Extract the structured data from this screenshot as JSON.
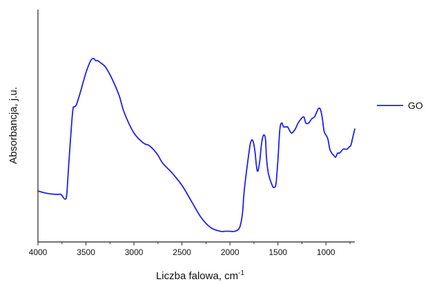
{
  "chart_data": {
    "type": "line",
    "title": "",
    "xlabel": "Liczba falowa, cm",
    "xlabel_superscript": "-1",
    "ylabel": "Absorbancja, j.u.",
    "xlim": [
      4000,
      700
    ],
    "x_reversed": true,
    "ylim": [
      0,
      1
    ],
    "y_ticks_shown": false,
    "x_ticks": [
      4000,
      3500,
      3000,
      2500,
      2000,
      1500,
      1000
    ],
    "grid": false,
    "legend_position": "right",
    "series": [
      {
        "name": "GO",
        "color": "#1f1fef",
        "x": [
          4000,
          3900,
          3800,
          3760,
          3720,
          3700,
          3680,
          3640,
          3620,
          3600,
          3560,
          3500,
          3450,
          3420,
          3400,
          3380,
          3350,
          3300,
          3250,
          3200,
          3150,
          3100,
          3000,
          2900,
          2850,
          2800,
          2750,
          2700,
          2600,
          2500,
          2400,
          2300,
          2200,
          2100,
          2050,
          2000,
          1950,
          1900,
          1870,
          1850,
          1800,
          1780,
          1760,
          1740,
          1725,
          1710,
          1690,
          1670,
          1650,
          1630,
          1620,
          1600,
          1560,
          1540,
          1520,
          1500,
          1480,
          1460,
          1440,
          1400,
          1360,
          1320,
          1290,
          1260,
          1230,
          1210,
          1180,
          1150,
          1120,
          1100,
          1080,
          1060,
          1040,
          1020,
          1000,
          980,
          960,
          940,
          920,
          900,
          880,
          860,
          840,
          820,
          800,
          780,
          760,
          740,
          720,
          700
        ],
        "y": [
          0.212,
          0.2,
          0.195,
          0.195,
          0.172,
          0.195,
          0.34,
          0.6,
          0.63,
          0.64,
          0.7,
          0.8,
          0.86,
          0.87,
          0.86,
          0.86,
          0.85,
          0.83,
          0.79,
          0.74,
          0.68,
          0.6,
          0.5,
          0.45,
          0.44,
          0.42,
          0.39,
          0.35,
          0.3,
          0.24,
          0.16,
          0.08,
          0.03,
          0.012,
          0.012,
          0.012,
          0.012,
          0.03,
          0.1,
          0.22,
          0.41,
          0.46,
          0.46,
          0.41,
          0.34,
          0.31,
          0.36,
          0.45,
          0.49,
          0.47,
          0.38,
          0.3,
          0.24,
          0.23,
          0.25,
          0.37,
          0.52,
          0.55,
          0.53,
          0.53,
          0.5,
          0.52,
          0.55,
          0.57,
          0.58,
          0.55,
          0.55,
          0.57,
          0.58,
          0.6,
          0.62,
          0.62,
          0.58,
          0.51,
          0.49,
          0.47,
          0.42,
          0.4,
          0.39,
          0.38,
          0.4,
          0.4,
          0.41,
          0.42,
          0.42,
          0.42,
          0.43,
          0.44,
          0.48,
          0.52
        ]
      }
    ]
  }
}
